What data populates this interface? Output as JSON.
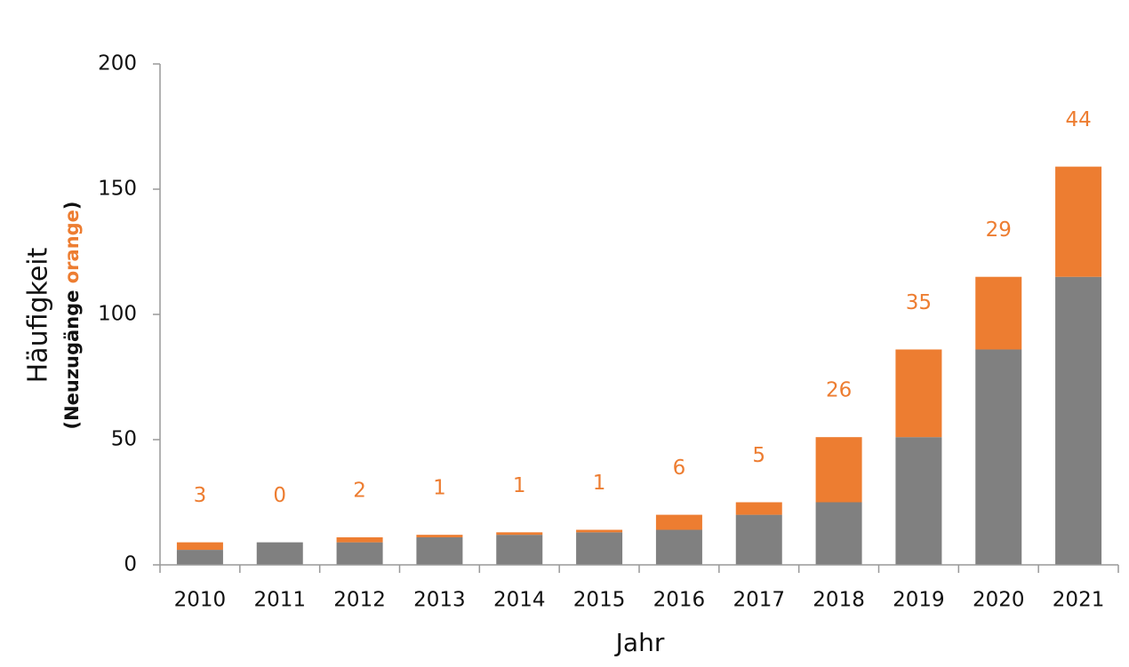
{
  "chart_data": {
    "type": "stacked_bar",
    "x_label": "Jahr",
    "y_label": "Häufigkeit",
    "y_sublabel": [
      "(Neuzugänge",
      "orange",
      ")"
    ],
    "categories": [
      "2010",
      "2011",
      "2012",
      "2013",
      "2014",
      "2015",
      "2016",
      "2017",
      "2018",
      "2019",
      "2020",
      "2021"
    ],
    "series": [
      {
        "color": "#808080",
        "values": [
          6,
          9,
          9,
          11,
          12,
          13,
          14,
          20,
          25,
          51,
          86,
          115
        ]
      },
      {
        "color": "#ed7d31",
        "values": [
          3,
          0,
          2,
          1,
          1,
          1,
          6,
          5,
          26,
          35,
          29,
          44
        ]
      }
    ],
    "label_color": "#ed7d31",
    "ylim": [
      0,
      200
    ],
    "yticks": [
      0,
      50,
      100,
      150,
      200
    ]
  }
}
